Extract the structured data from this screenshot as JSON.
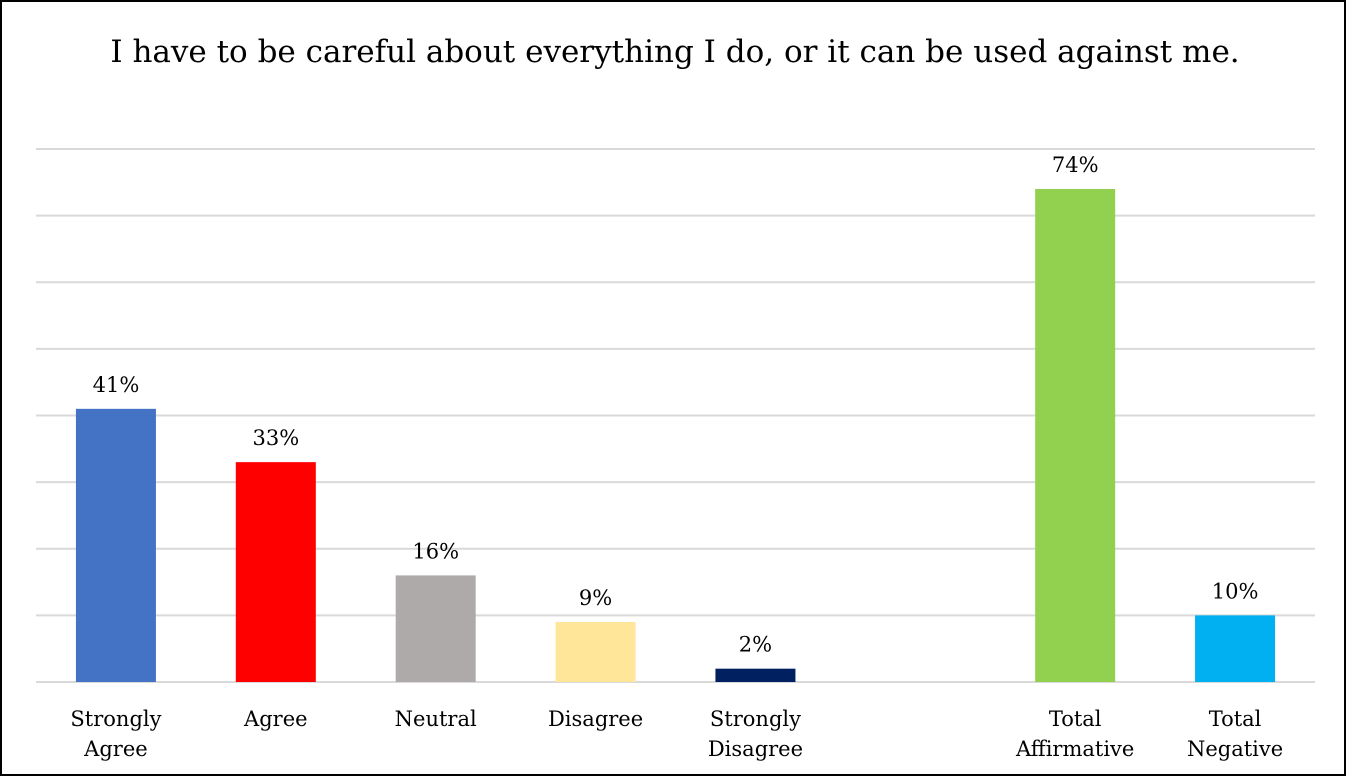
{
  "chart_data": {
    "type": "bar",
    "title": "I have to be careful about everything I do, or it can be used against me.",
    "categories": [
      [
        "Strongly",
        "Agree"
      ],
      [
        "Agree"
      ],
      [
        "Neutral"
      ],
      [
        "Disagree"
      ],
      [
        "Strongly",
        "Disagree"
      ],
      [
        "Total",
        "Affirmative"
      ],
      [
        "Total",
        "Negative"
      ]
    ],
    "values": [
      41,
      33,
      16,
      9,
      2,
      74,
      10
    ],
    "value_labels": [
      "41%",
      "33%",
      "16%",
      "9%",
      "2%",
      "74%",
      "10%"
    ],
    "colors": [
      "#4472C4",
      "#FF0000",
      "#AEAAAA",
      "#FFE699",
      "#002060",
      "#92D050",
      "#00B0F0"
    ],
    "ylim": [
      0,
      80
    ],
    "grid": true,
    "legend": "none"
  }
}
